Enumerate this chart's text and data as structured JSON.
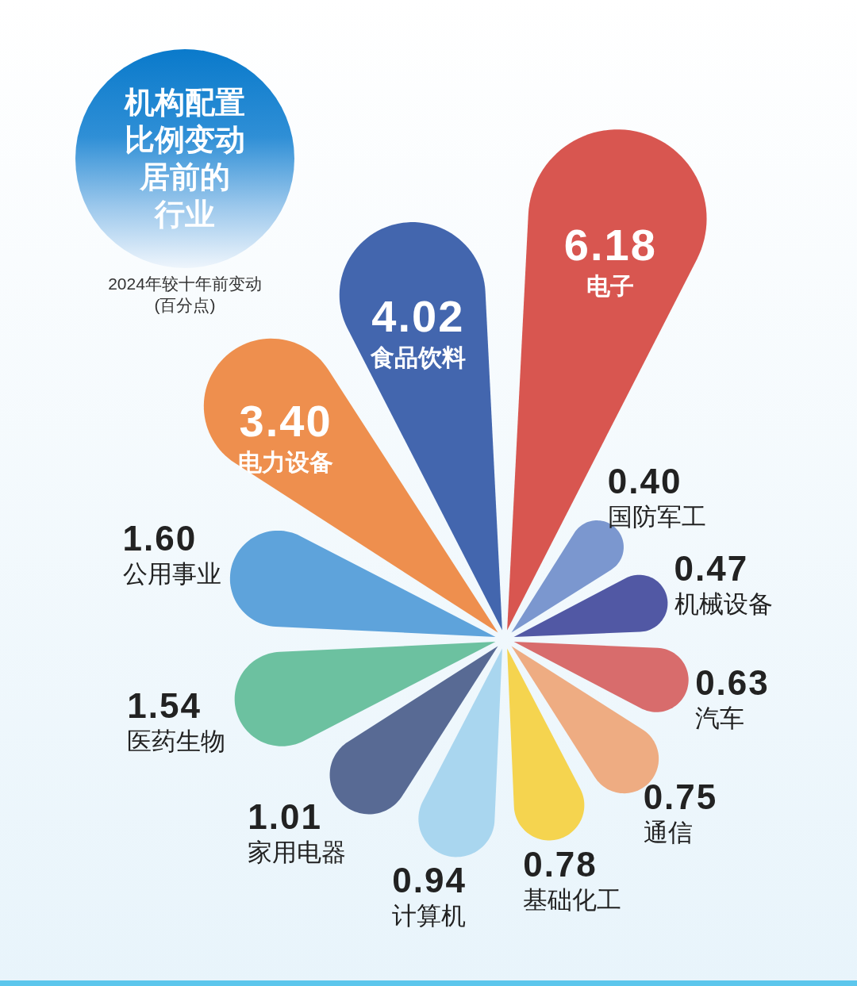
{
  "chart_data": {
    "type": "other",
    "title": "机构配置比例变动居前的行业",
    "subtitle": "2024年较十年前变动(百分点)",
    "categories": [
      "电子",
      "国防军工",
      "机械设备",
      "汽车",
      "通信",
      "基础化工",
      "计算机",
      "家用电器",
      "医药生物",
      "公用事业",
      "电力设备",
      "食品饮料"
    ],
    "values": [
      6.18,
      0.4,
      0.47,
      0.63,
      0.75,
      0.78,
      0.94,
      1.01,
      1.54,
      1.6,
      3.4,
      4.02
    ],
    "value_labels": [
      "6.18",
      "0.40",
      "0.47",
      "0.63",
      "0.75",
      "0.78",
      "0.94",
      "1.01",
      "1.54",
      "1.60",
      "3.40",
      "4.02"
    ],
    "colors": [
      "#d85650",
      "#7b97cf",
      "#5158a4",
      "#d86c6c",
      "#eeac82",
      "#f5d44f",
      "#a9d6ef",
      "#586a94",
      "#6cc1a0",
      "#5ea3db",
      "#ee8f4e",
      "#4366ae"
    ]
  }
}
